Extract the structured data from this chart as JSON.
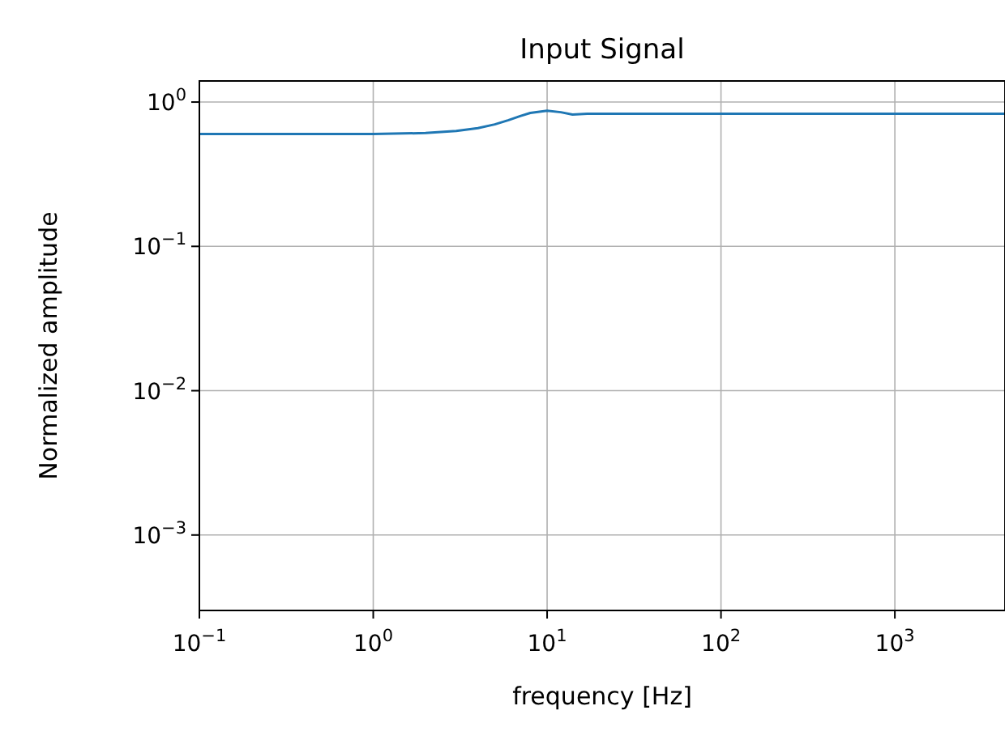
{
  "chart_data": {
    "type": "line",
    "title": "Input Signal",
    "xlabel": "frequency [Hz]",
    "ylabel": "Normalized amplitude",
    "log": "xy",
    "grid": true,
    "xlim": [
      0.1,
      4300
    ],
    "ylim": [
      0.0003,
      1.4
    ],
    "xticks": [
      {
        "value": 0.1,
        "label": "10$^{−1}$"
      },
      {
        "value": 1,
        "label": "10$^{0}$"
      },
      {
        "value": 10,
        "label": "10$^{1}$"
      },
      {
        "value": 100,
        "label": "10$^{2}$"
      },
      {
        "value": 1000,
        "label": "10$^{3}$"
      }
    ],
    "yticks": [
      {
        "value": 0.001,
        "label": "10$^{−3}$"
      },
      {
        "value": 0.01,
        "label": "10$^{−2}$"
      },
      {
        "value": 0.1,
        "label": "10$^{−1}$"
      },
      {
        "value": 1,
        "label": "10$^{0}$"
      }
    ],
    "x": [
      0.1,
      1,
      2,
      3,
      4,
      5,
      6,
      7,
      8,
      10,
      12,
      14,
      17,
      30,
      4300
    ],
    "series": [
      {
        "color": "#1f77b4",
        "values": [
          0.6,
          0.6,
          0.61,
          0.63,
          0.66,
          0.7,
          0.75,
          0.8,
          0.84,
          0.87,
          0.85,
          0.82,
          0.83,
          0.83,
          0.83
        ]
      }
    ]
  }
}
